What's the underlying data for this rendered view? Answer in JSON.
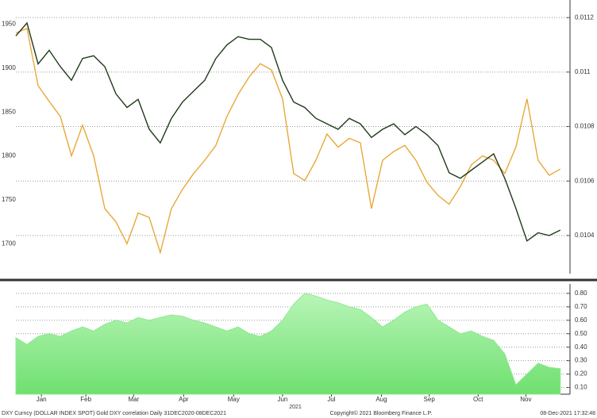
{
  "chart_data": [
    {
      "type": "line",
      "xlim": [
        0,
        49.3
      ],
      "ylim": [
        1666,
        1973
      ],
      "yticks": [
        1700,
        1750,
        1800,
        1850,
        1900,
        1950
      ],
      "y2lim": [
        0.01026,
        0.01125
      ],
      "y2ticks": [
        0.0104,
        0.0106,
        0.0108,
        0.011,
        0.0112
      ],
      "grid": true,
      "series": [
        {
          "name": "Gold",
          "color": "#e8a838",
          "axis": "y",
          "values": [
            1940,
            1945,
            1880,
            1862,
            1845,
            1800,
            1835,
            1800,
            1740,
            1725,
            1700,
            1735,
            1730,
            1690,
            1740,
            1762,
            1780,
            1795,
            1812,
            1845,
            1870,
            1890,
            1905,
            1898,
            1865,
            1780,
            1772,
            1795,
            1825,
            1810,
            1820,
            1815,
            1740,
            1795,
            1805,
            1812,
            1795,
            1770,
            1755,
            1745,
            1765,
            1790,
            1800,
            1795,
            1780,
            1810,
            1865,
            1795,
            1778,
            1785
          ]
        },
        {
          "name": "DXY Curncy",
          "color": "#1f3a1a",
          "axis": "y2",
          "values": [
            0.011133,
            0.01118,
            0.01103,
            0.01108,
            0.01102,
            0.01097,
            0.01105,
            0.01106,
            0.01102,
            0.01092,
            0.01087,
            0.0109,
            0.01079,
            0.01074,
            0.01083,
            0.01089,
            0.01093,
            0.01097,
            0.01105,
            0.0111,
            0.01113,
            0.01112,
            0.01112,
            0.01109,
            0.01097,
            0.01089,
            0.01087,
            0.01083,
            0.01081,
            0.01079,
            0.01083,
            0.01081,
            0.01076,
            0.01079,
            0.01081,
            0.01077,
            0.0108,
            0.01077,
            0.01073,
            0.01063,
            0.01061,
            0.01064,
            0.01067,
            0.0107,
            0.01061,
            0.0105,
            0.01038,
            0.01041,
            0.0104,
            0.01042
          ]
        }
      ]
    },
    {
      "type": "area",
      "xlim": [
        0,
        49.3
      ],
      "xticks": [
        {
          "value": 2.3,
          "label": "Jan"
        },
        {
          "value": 6.3,
          "label": "Feb"
        },
        {
          "value": 10.6,
          "label": "Mar"
        },
        {
          "value": 15.1,
          "label": "Apr"
        },
        {
          "value": 19.6,
          "label": "May"
        },
        {
          "value": 24,
          "label": "Jun"
        },
        {
          "value": 28.4,
          "label": "Jul"
        },
        {
          "value": 32.9,
          "label": "Aug"
        },
        {
          "value": 37.2,
          "label": "Sep"
        },
        {
          "value": 41.6,
          "label": "Oct"
        },
        {
          "value": 45.9,
          "label": "Nov"
        }
      ],
      "xlabel": "2021",
      "y2lim": [
        0.05,
        0.87
      ],
      "y2ticks": [
        {
          "value": 0.1,
          "label": "0.10"
        },
        {
          "value": 0.2,
          "label": "0.20"
        },
        {
          "value": 0.3,
          "label": "0.30"
        },
        {
          "value": 0.4,
          "label": "0.40"
        },
        {
          "value": 0.5,
          "label": "0.50"
        },
        {
          "value": 0.6,
          "label": "0.60"
        },
        {
          "value": 0.7,
          "label": "0.70"
        },
        {
          "value": 0.8,
          "label": "0.80"
        }
      ],
      "grid": true,
      "series": [
        {
          "name": "Gold DXY correlation",
          "color": "#8fe88f",
          "axis": "y2",
          "values": [
            0.47,
            0.42,
            0.48,
            0.5,
            0.48,
            0.52,
            0.55,
            0.52,
            0.57,
            0.6,
            0.58,
            0.62,
            0.6,
            0.62,
            0.64,
            0.63,
            0.6,
            0.58,
            0.55,
            0.52,
            0.55,
            0.5,
            0.48,
            0.52,
            0.6,
            0.72,
            0.8,
            0.78,
            0.75,
            0.73,
            0.7,
            0.68,
            0.62,
            0.55,
            0.6,
            0.66,
            0.7,
            0.72,
            0.6,
            0.55,
            0.5,
            0.52,
            0.48,
            0.45,
            0.35,
            0.12,
            0.2,
            0.28,
            0.25,
            0.24
          ]
        }
      ]
    }
  ],
  "footer": {
    "left": "DXY Curncy (DOLLAR INDEX SPOT) Gold DXY correlation  Daily 31DEC2020-08DEC2021",
    "center": "Copyright© 2021 Bloomberg Finance L.P.",
    "right": "08-Dec-2021 17:32:48"
  }
}
